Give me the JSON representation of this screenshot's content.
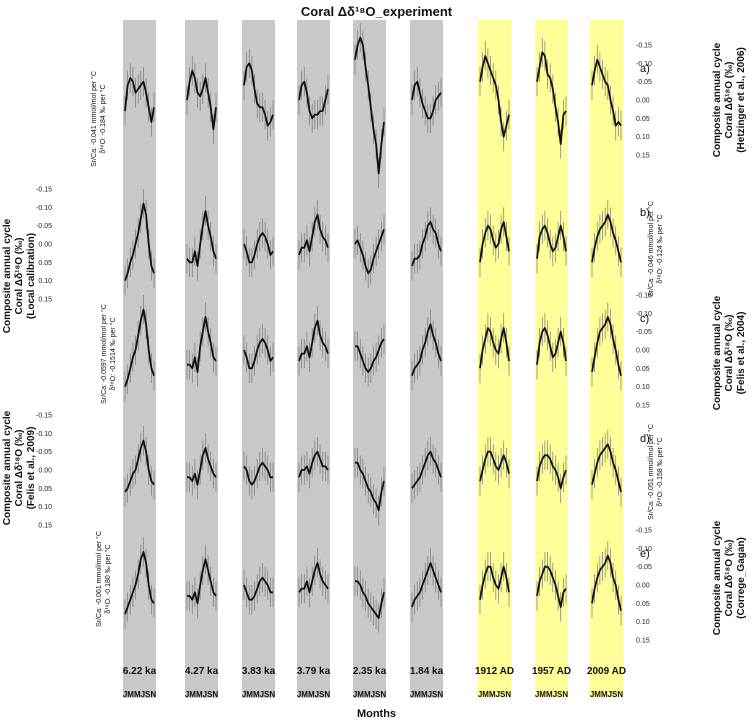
{
  "title": "Coral Δδ¹⁸O_experiment",
  "xlabel": "Months",
  "month_tick_label": "JMMJSN",
  "left_axis_titles": [
    [
      "Composite annual cycle",
      "Coral Δδ¹⁸O (‰)",
      "(Local calibration)"
    ],
    [
      "Composite annual cycle",
      "Coral Δδ¹⁸O (‰)",
      "(Felis et al., 2009)"
    ]
  ],
  "right_axis_titles": [
    [
      "Composite annual cycle",
      "Coral Δδ¹⁸O (‰)",
      "(Hetzinger et al., 2006)"
    ],
    [
      "Composite annual cycle",
      "Coral Δδ¹⁸O (‰)",
      "(Felis et al., 2004)"
    ],
    [
      "Composite annual cycle",
      "Coral Δδ¹⁸O (‰)",
      "(Correge_Gagan)"
    ]
  ],
  "calibration_notes": [
    [
      "Sr/Ca: -0.041 mmol/mol per °C",
      "δ¹⁸O: -0.184 ‰ per °C"
    ],
    [
      "Sr/Ca: -0.0597 mmol/mol per °C",
      "δ¹⁸O: -0.1514 ‰ per °C"
    ],
    [
      "Sr/Ca: -0.061 mmol/mol per °C",
      "δ¹⁸O: -0.180 ‰ per °C"
    ],
    [
      "Sr/Ca: -0.046 mmol/mol per °C",
      "δ¹⁸O: -0.124 ‰ per °C"
    ],
    [
      "Sr/Ca: -0.051 mmol/mol per °C",
      "δ¹⁸O: -0.158 ‰ per °C"
    ]
  ],
  "colors": {
    "fossil_band": "#c8c8c8",
    "modern_band": "#ffff99",
    "line": "#111111",
    "error_bar": "#777777"
  },
  "chart_data": {
    "type": "line",
    "y_axis_inverted": true,
    "ylim": [
      -0.15,
      0.15
    ],
    "y_ticks": [
      "-0.15",
      "-0.10",
      "-0.05",
      "0.00",
      "0.05",
      "0.10",
      "0.15"
    ],
    "months": [
      "J",
      "F",
      "M",
      "A",
      "M",
      "J",
      "J",
      "A",
      "S",
      "O",
      "N",
      "D"
    ],
    "sites": [
      {
        "label": "6.22 ka",
        "band": "fossil"
      },
      {
        "label": "4.27 ka",
        "band": "fossil"
      },
      {
        "label": "3.83 ka",
        "band": "fossil"
      },
      {
        "label": "3.79 ka",
        "band": "fossil"
      },
      {
        "label": "2.35 ka",
        "band": "fossil"
      },
      {
        "label": "1.84 ka",
        "band": "fossil"
      },
      {
        "label": "1912 AD",
        "band": "modern"
      },
      {
        "label": "1957 AD",
        "band": "modern"
      },
      {
        "label": "2009 AD",
        "band": "modern"
      }
    ],
    "rows": [
      {
        "label": "a)",
        "series": [
          [
            0.03,
            -0.04,
            -0.06,
            -0.05,
            -0.02,
            -0.03,
            -0.04,
            -0.05,
            -0.02,
            0.02,
            0.06,
            0.02
          ],
          [
            0.0,
            -0.05,
            -0.08,
            -0.06,
            -0.02,
            -0.01,
            -0.03,
            -0.06,
            -0.02,
            0.02,
            0.08,
            0.02
          ],
          [
            -0.04,
            -0.09,
            -0.1,
            -0.08,
            -0.03,
            0.01,
            0.02,
            0.02,
            0.04,
            0.07,
            0.06,
            0.04
          ],
          [
            0.0,
            -0.04,
            -0.05,
            -0.02,
            0.03,
            0.05,
            0.04,
            0.04,
            0.03,
            0.03,
            0.0,
            -0.03
          ],
          [
            -0.11,
            -0.15,
            -0.17,
            -0.15,
            -0.09,
            -0.04,
            0.02,
            0.08,
            0.12,
            0.2,
            0.12,
            0.06
          ],
          [
            0.0,
            -0.04,
            -0.05,
            -0.02,
            0.01,
            0.03,
            0.05,
            0.05,
            0.03,
            0.0,
            -0.01,
            -0.02
          ],
          [
            -0.05,
            -0.09,
            -0.12,
            -0.1,
            -0.08,
            -0.06,
            -0.04,
            0.0,
            0.06,
            0.1,
            0.07,
            0.04
          ],
          [
            -0.05,
            -0.09,
            -0.13,
            -0.12,
            -0.07,
            -0.06,
            -0.03,
            0.02,
            0.06,
            0.12,
            0.04,
            0.03
          ],
          [
            -0.04,
            -0.08,
            -0.11,
            -0.09,
            -0.07,
            -0.05,
            -0.04,
            0.0,
            0.03,
            0.07,
            0.06,
            0.07
          ]
        ]
      },
      {
        "label": "b)",
        "series": [
          [
            0.1,
            0.08,
            0.05,
            0.03,
            0.0,
            -0.03,
            -0.07,
            -0.11,
            -0.08,
            0.0,
            0.06,
            0.08
          ],
          [
            0.04,
            0.05,
            0.05,
            0.02,
            0.06,
            0.0,
            -0.05,
            -0.09,
            -0.05,
            -0.02,
            0.02,
            0.04
          ],
          [
            0.0,
            0.02,
            0.05,
            0.05,
            0.03,
            0.0,
            -0.02,
            -0.03,
            -0.02,
            0.0,
            0.03,
            0.02
          ],
          [
            0.03,
            0.01,
            0.01,
            -0.01,
            0.02,
            -0.02,
            -0.06,
            -0.08,
            -0.04,
            -0.02,
            -0.01,
            0.01
          ],
          [
            0.0,
            -0.01,
            0.01,
            0.03,
            0.06,
            0.08,
            0.07,
            0.04,
            0.02,
            0.0,
            -0.02,
            -0.04
          ],
          [
            0.06,
            0.04,
            0.04,
            0.03,
            0.0,
            -0.02,
            -0.05,
            -0.06,
            -0.04,
            -0.03,
            0.0,
            0.02
          ],
          [
            0.05,
            0.0,
            -0.03,
            -0.05,
            -0.04,
            -0.01,
            0.01,
            0.0,
            -0.04,
            -0.06,
            -0.02,
            0.02
          ],
          [
            0.04,
            -0.02,
            -0.04,
            -0.05,
            -0.03,
            0.0,
            0.02,
            0.01,
            -0.02,
            -0.05,
            -0.02,
            0.02
          ],
          [
            0.05,
            0.01,
            -0.02,
            -0.04,
            -0.05,
            -0.06,
            -0.08,
            -0.06,
            -0.03,
            -0.01,
            0.02,
            0.05
          ]
        ]
      },
      {
        "label": "c)",
        "series": [
          [
            0.1,
            0.08,
            0.05,
            0.02,
            0.0,
            -0.04,
            -0.08,
            -0.11,
            -0.07,
            0.0,
            0.05,
            0.07
          ],
          [
            0.04,
            0.04,
            0.05,
            0.02,
            0.06,
            -0.01,
            -0.05,
            -0.09,
            -0.05,
            -0.02,
            0.02,
            0.03
          ],
          [
            0.0,
            0.02,
            0.05,
            0.05,
            0.03,
            0.0,
            -0.02,
            -0.03,
            -0.02,
            0.0,
            0.03,
            0.02
          ],
          [
            0.03,
            0.01,
            0.01,
            -0.01,
            0.02,
            -0.02,
            -0.06,
            -0.08,
            -0.04,
            -0.02,
            -0.01,
            0.01
          ],
          [
            -0.01,
            -0.01,
            0.01,
            0.03,
            0.05,
            0.06,
            0.05,
            0.03,
            0.02,
            0.0,
            -0.02,
            -0.03
          ],
          [
            0.07,
            0.05,
            0.04,
            0.03,
            0.0,
            -0.02,
            -0.05,
            -0.07,
            -0.04,
            -0.02,
            0.01,
            0.03
          ],
          [
            0.05,
            0.0,
            -0.03,
            -0.06,
            -0.05,
            -0.02,
            0.0,
            0.01,
            -0.03,
            -0.06,
            -0.02,
            0.03
          ],
          [
            0.04,
            -0.02,
            -0.05,
            -0.06,
            -0.04,
            -0.01,
            0.02,
            0.01,
            -0.02,
            -0.05,
            -0.02,
            0.03
          ],
          [
            0.06,
            0.02,
            -0.02,
            -0.05,
            -0.06,
            -0.07,
            -0.09,
            -0.07,
            -0.03,
            0.0,
            0.04,
            0.07
          ]
        ]
      },
      {
        "label": "d)",
        "series": [
          [
            0.06,
            0.05,
            0.03,
            0.01,
            0.0,
            -0.03,
            -0.06,
            -0.08,
            -0.05,
            0.0,
            0.03,
            0.04
          ],
          [
            0.02,
            0.02,
            0.03,
            0.01,
            0.04,
            0.0,
            -0.04,
            -0.06,
            -0.03,
            -0.01,
            0.01,
            0.02
          ],
          [
            -0.01,
            0.0,
            0.03,
            0.04,
            0.03,
            0.01,
            -0.01,
            -0.02,
            -0.01,
            0.0,
            0.02,
            0.02
          ],
          [
            0.02,
            0.0,
            0.0,
            -0.01,
            0.01,
            -0.02,
            -0.04,
            -0.05,
            -0.03,
            -0.01,
            -0.01,
            0.0
          ],
          [
            -0.02,
            -0.02,
            0.0,
            0.01,
            0.03,
            0.05,
            0.06,
            0.08,
            0.09,
            0.11,
            0.06,
            0.03
          ],
          [
            0.05,
            0.04,
            0.03,
            0.02,
            0.0,
            -0.02,
            -0.04,
            -0.05,
            -0.03,
            -0.02,
            0.0,
            0.02
          ],
          [
            0.03,
            0.0,
            -0.03,
            -0.05,
            -0.05,
            -0.03,
            -0.01,
            0.0,
            -0.02,
            -0.04,
            -0.02,
            0.01
          ],
          [
            0.03,
            -0.01,
            -0.03,
            -0.04,
            -0.04,
            -0.03,
            -0.01,
            0.0,
            0.02,
            0.05,
            0.02,
            0.0
          ],
          [
            0.04,
            0.01,
            -0.02,
            -0.04,
            -0.05,
            -0.06,
            -0.07,
            -0.05,
            -0.02,
            0.0,
            0.03,
            0.06
          ]
        ]
      },
      {
        "label": "e)",
        "series": [
          [
            0.08,
            0.06,
            0.04,
            0.02,
            0.0,
            -0.03,
            -0.07,
            -0.09,
            -0.06,
            0.0,
            0.04,
            0.05
          ],
          [
            0.03,
            0.03,
            0.04,
            0.02,
            0.05,
            0.0,
            -0.04,
            -0.07,
            -0.04,
            -0.01,
            0.02,
            0.03
          ],
          [
            0.0,
            0.02,
            0.04,
            0.04,
            0.03,
            0.01,
            -0.01,
            -0.02,
            -0.01,
            0.0,
            0.02,
            0.02
          ],
          [
            0.02,
            0.01,
            0.01,
            -0.01,
            0.02,
            -0.01,
            -0.04,
            -0.06,
            -0.03,
            -0.01,
            0.0,
            0.01
          ],
          [
            -0.01,
            -0.01,
            0.0,
            0.02,
            0.03,
            0.05,
            0.06,
            0.07,
            0.08,
            0.09,
            0.05,
            0.02
          ],
          [
            0.06,
            0.04,
            0.03,
            0.02,
            0.0,
            -0.02,
            -0.04,
            -0.06,
            -0.04,
            -0.02,
            0.0,
            0.02
          ],
          [
            0.04,
            0.0,
            -0.03,
            -0.05,
            -0.05,
            -0.02,
            0.0,
            0.01,
            -0.02,
            -0.05,
            -0.02,
            0.02
          ],
          [
            0.03,
            -0.01,
            -0.03,
            -0.05,
            -0.05,
            -0.04,
            -0.02,
            0.0,
            0.03,
            0.06,
            0.02,
            0.01
          ],
          [
            0.05,
            0.01,
            -0.02,
            -0.04,
            -0.05,
            -0.06,
            -0.08,
            -0.06,
            -0.02,
            0.0,
            0.04,
            0.07
          ]
        ]
      }
    ]
  }
}
